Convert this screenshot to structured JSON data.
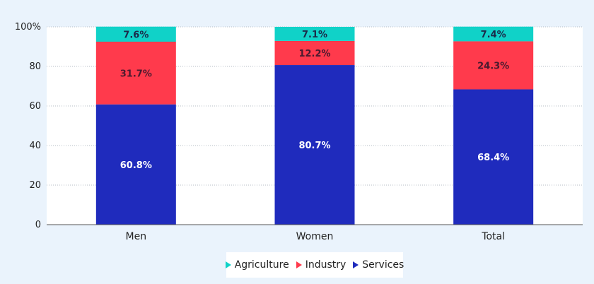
{
  "chart_data": {
    "type": "bar",
    "stacked": true,
    "categories": [
      "Men",
      "Women",
      "Total"
    ],
    "series": [
      {
        "name": "Services",
        "color": "#1f2bbd",
        "label_color": "#ffffff",
        "values": [
          60.8,
          80.7,
          68.4
        ],
        "labels": [
          "60.8%",
          "80.7%",
          "68.4%"
        ]
      },
      {
        "name": "Industry",
        "color": "#ff3a4c",
        "label_color": "#4a1a2e",
        "values": [
          31.7,
          12.2,
          24.3
        ],
        "labels": [
          "31.7%",
          "12.2%",
          "24.3%"
        ]
      },
      {
        "name": "Agriculture",
        "color": "#10d2c8",
        "label_color": "#1b2a4a",
        "values": [
          7.6,
          7.1,
          7.4
        ],
        "labels": [
          "7.6%",
          "7.1%",
          "7.4%"
        ]
      }
    ],
    "ylim": [
      0,
      100
    ],
    "yticks": [
      0,
      20,
      40,
      60,
      80,
      100
    ],
    "ytick_labels": [
      "0",
      "20",
      "40",
      "60",
      "80",
      "100%"
    ],
    "grid": "horizontal-dotted",
    "legend_position": "bottom-center",
    "legend": [
      "Agriculture",
      "Industry",
      "Services"
    ]
  }
}
